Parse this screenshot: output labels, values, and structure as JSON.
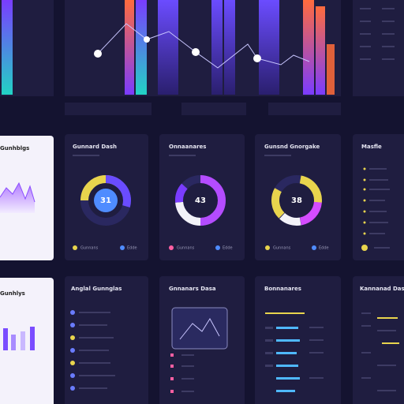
{
  "cards": [
    {
      "title": "Gunnard Dash",
      "center": "31",
      "legend": [
        "Gunnans",
        "Edde"
      ]
    },
    {
      "title": "Onnaanares",
      "center": "43",
      "legend": [
        "Gunnans",
        "Edde"
      ]
    },
    {
      "title": "Gunsnd Gnorgake",
      "center": "38",
      "legend": [
        "Gunnans",
        "Edde"
      ]
    },
    {
      "title": "Masfle"
    }
  ],
  "left_cards": [
    "Gunhblgs",
    "Gunhlys"
  ],
  "bottom_cards": [
    "Anglal Gunnglas",
    "Gnnanars Dasa",
    "Bonnanares",
    "Kannanad Dash b"
  ]
}
